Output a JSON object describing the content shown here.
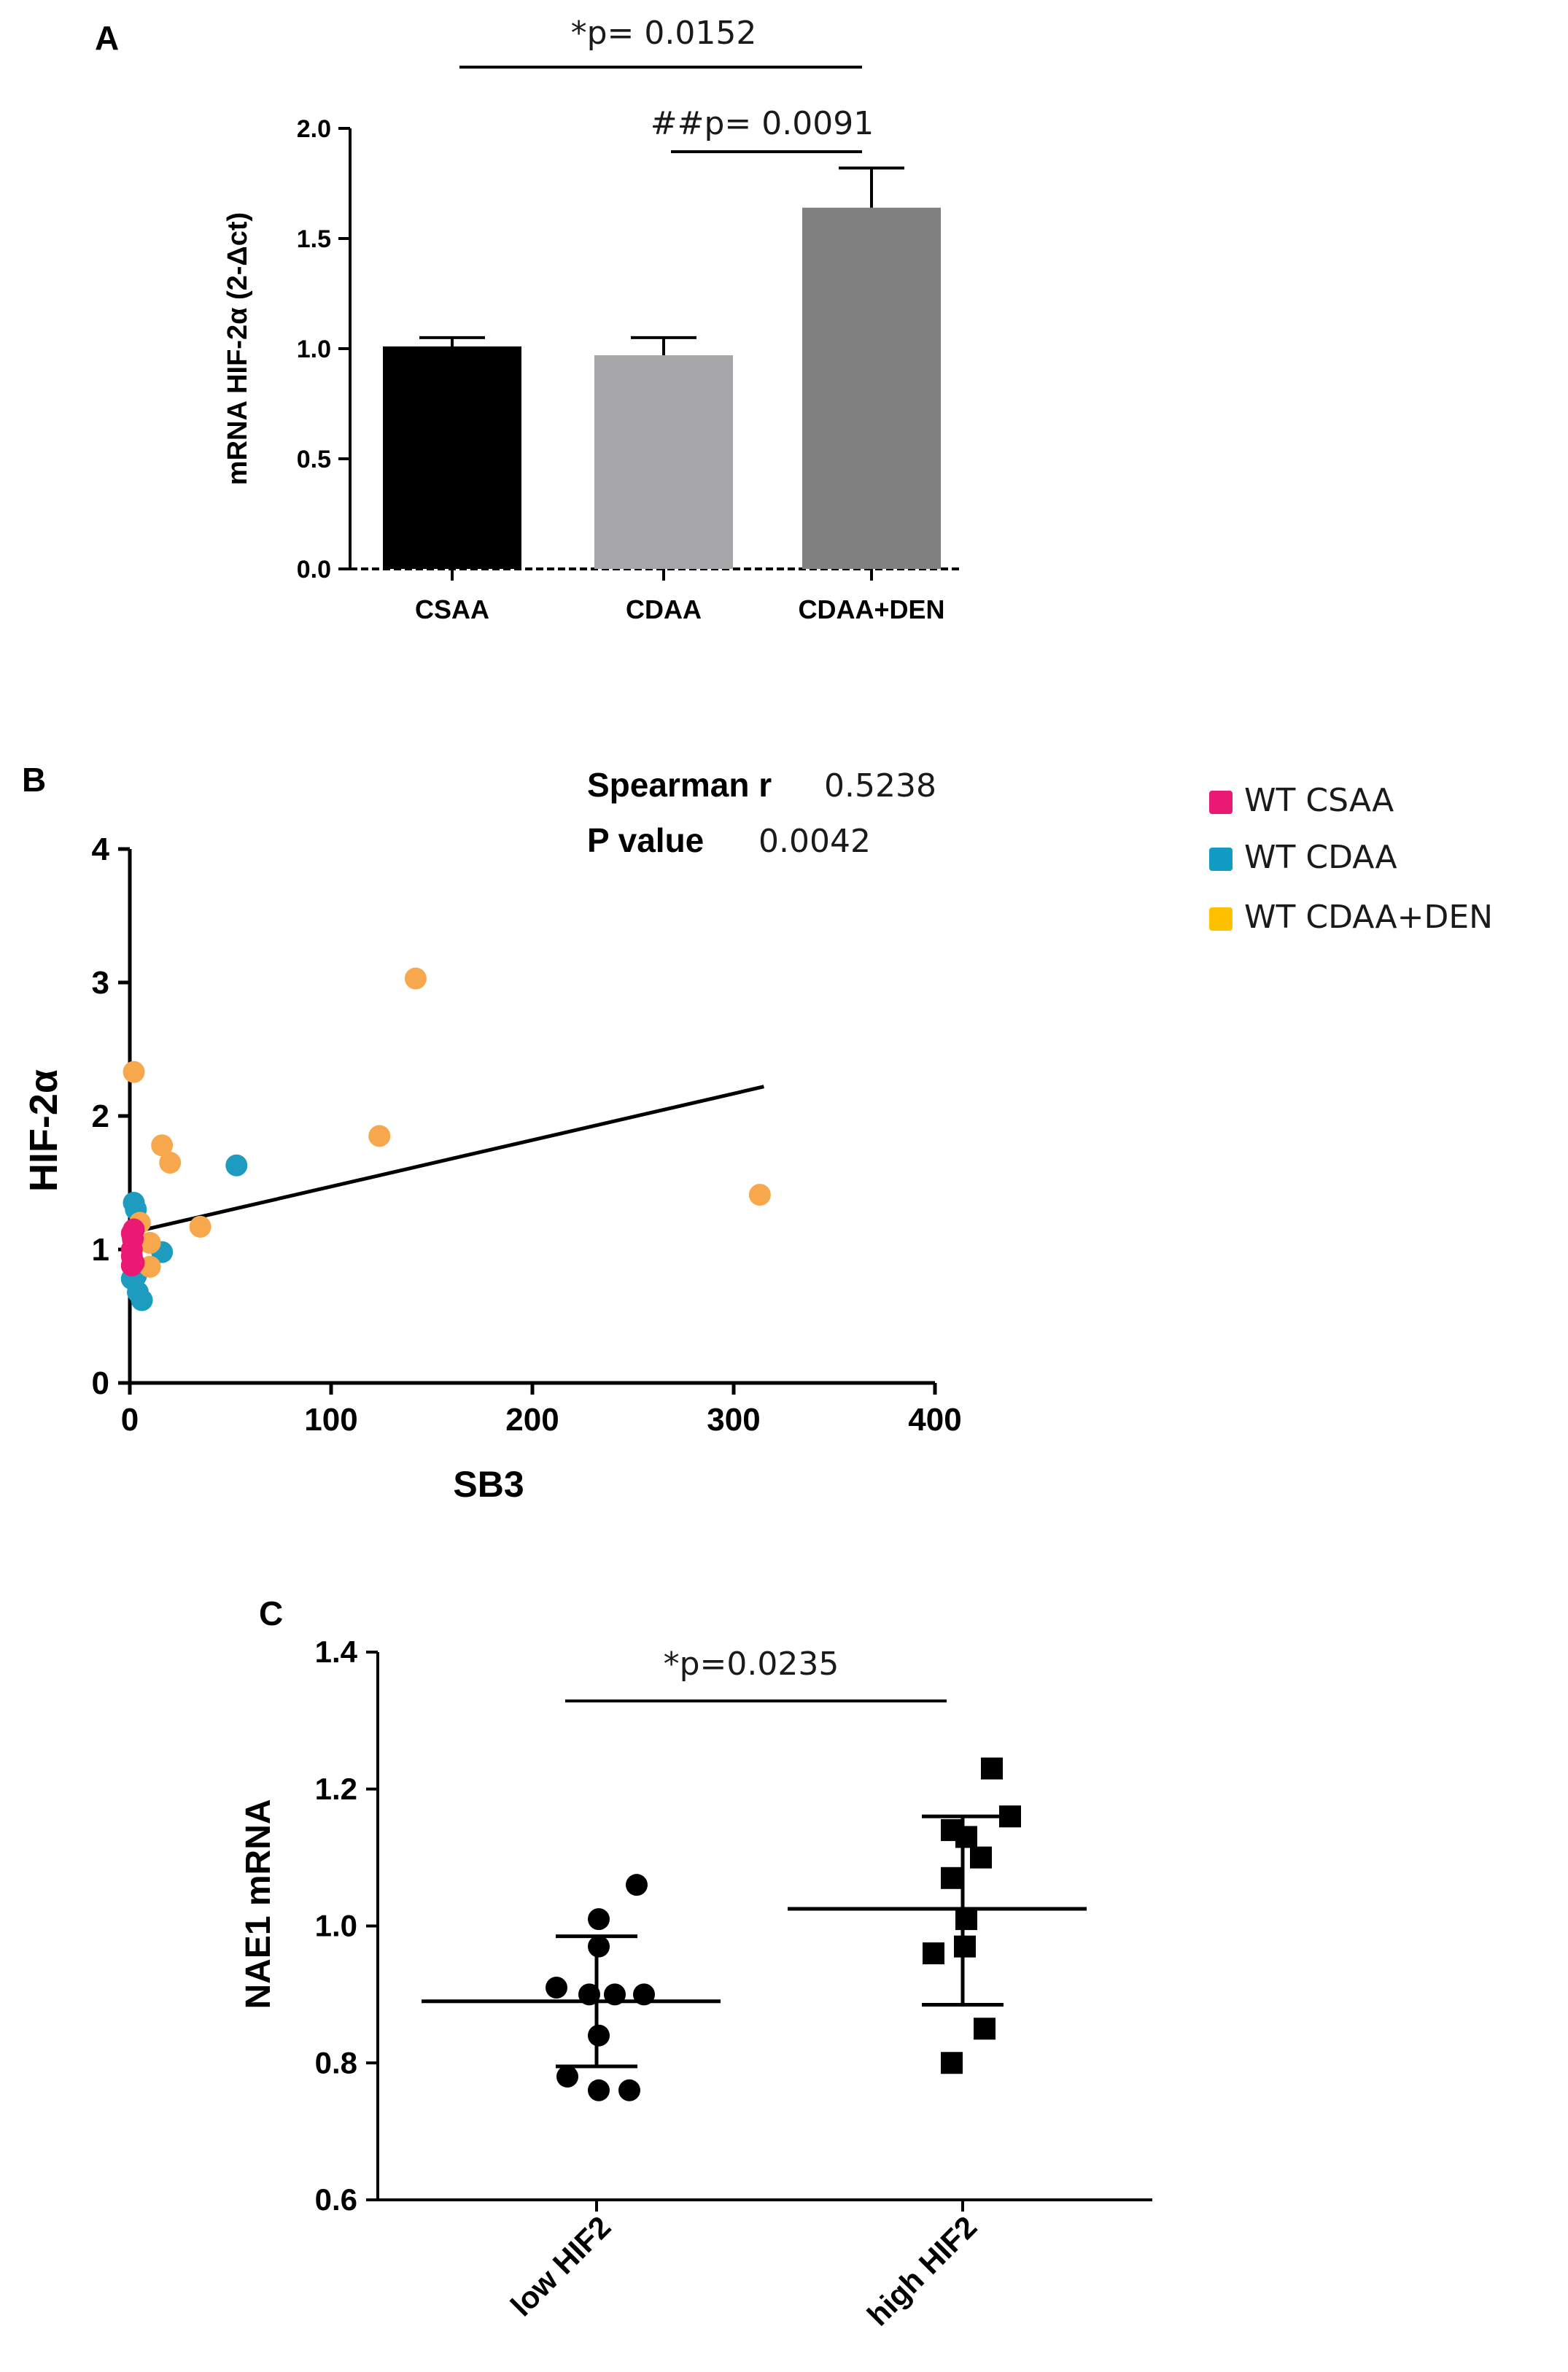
{
  "chart_data": [
    {
      "panel": "A",
      "type": "bar",
      "categories": [
        "CSAA",
        "CDAA",
        "CDAA+DEN"
      ],
      "values": [
        1.01,
        0.97,
        1.64
      ],
      "errors": [
        0.04,
        0.08,
        0.18
      ],
      "colors": [
        "#000000",
        "#a6a6a8",
        "#808080"
      ],
      "ylabel": "mRNA HIF-2α (2-Δct)",
      "ylim": [
        0,
        2.0
      ],
      "yticks": [
        "0.0",
        "0.5",
        "1.0",
        "1.5",
        "2.0"
      ],
      "significance": [
        {
          "label": "*p= 0.0152",
          "from": 0,
          "to": 2
        },
        {
          "label": "##p= 0.0091",
          "from": 1,
          "to": 2
        }
      ]
    },
    {
      "panel": "B",
      "type": "scatter",
      "xlabel": "SB3",
      "ylabel": "HIF-2α",
      "xlim": [
        0,
        400
      ],
      "ylim": [
        0,
        4
      ],
      "xticks": [
        "0",
        "100",
        "200",
        "300",
        "400"
      ],
      "yticks": [
        "0",
        "1",
        "2",
        "3",
        "4"
      ],
      "stats": {
        "spearman_label": "Spearman r",
        "spearman_value": "0.5238",
        "p_label": "P value",
        "p_value": "0.0042"
      },
      "regression": {
        "x1": 2,
        "y1": 1.13,
        "x2": 315,
        "y2": 2.22
      },
      "series": [
        {
          "name": "WT CSAA",
          "legend_color": "#ea1a74",
          "marker_color": "#ea1a74",
          "points": [
            [
              1,
              0.95
            ],
            [
              1,
              1.0
            ],
            [
              1.5,
              1.08
            ],
            [
              1,
              1.12
            ],
            [
              2,
              1.15
            ],
            [
              2,
              0.9
            ],
            [
              1,
              0.88
            ]
          ]
        },
        {
          "name": "WT CDAA",
          "legend_color": "#129cc4",
          "marker_color": "#1d9cc0",
          "points": [
            [
              2,
              1.35
            ],
            [
              3,
              1.3
            ],
            [
              4,
              0.68
            ],
            [
              6,
              0.62
            ],
            [
              1,
              0.78
            ],
            [
              16,
              0.98
            ],
            [
              53,
              1.63
            ],
            [
              3,
              0.8
            ]
          ]
        },
        {
          "name": "WT CDAA+DEN",
          "legend_color": "#ffc000",
          "marker_color": "#f7a84d",
          "points": [
            [
              2,
              2.33
            ],
            [
              16,
              1.78
            ],
            [
              20,
              1.65
            ],
            [
              5,
              1.2
            ],
            [
              10,
              1.05
            ],
            [
              35,
              1.17
            ],
            [
              10,
              0.87
            ],
            [
              124,
              1.85
            ],
            [
              142,
              3.03
            ],
            [
              313,
              1.41
            ]
          ]
        }
      ]
    },
    {
      "panel": "C",
      "type": "scatter",
      "ylabel": "NAE1 mRNA",
      "categories": [
        "low HIF2",
        "high HIF2"
      ],
      "ylim": [
        0.6,
        1.4
      ],
      "yticks": [
        "0.6",
        "0.8",
        "1.0",
        "1.2",
        "1.4"
      ],
      "significance": [
        {
          "label": "*p=0.0235",
          "from": 0,
          "to": 1
        }
      ],
      "groups": [
        {
          "name": "low HIF2",
          "marker": "circle",
          "mean": 0.89,
          "sd_low": 0.795,
          "sd_high": 0.985,
          "points": [
            1.06,
            1.01,
            0.97,
            0.91,
            0.9,
            0.9,
            0.9,
            0.84,
            0.78,
            0.76,
            0.76
          ]
        },
        {
          "name": "high HIF2",
          "marker": "square",
          "mean": 1.025,
          "sd_low": 0.885,
          "sd_high": 1.16,
          "points": [
            1.23,
            1.16,
            1.14,
            1.13,
            1.1,
            1.07,
            1.01,
            0.97,
            0.96,
            0.85,
            0.8
          ]
        }
      ]
    }
  ]
}
